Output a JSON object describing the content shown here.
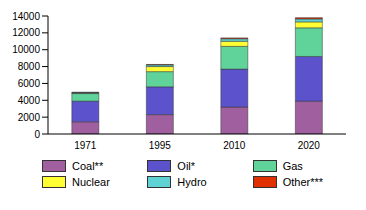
{
  "chart_data": {
    "type": "bar",
    "stacked": true,
    "categories": [
      "1971",
      "1995",
      "2010",
      "2020"
    ],
    "series": [
      {
        "name": "Coal**",
        "color": "#a0609f",
        "values": [
          1450,
          2300,
          3200,
          3900
        ]
      },
      {
        "name": "Oil*",
        "color": "#5b52cc",
        "values": [
          2450,
          3300,
          4500,
          5300
        ]
      },
      {
        "name": "Gas",
        "color": "#5fd39a",
        "values": [
          900,
          1800,
          2700,
          3400
        ]
      },
      {
        "name": "Nuclear",
        "color": "#ffff33",
        "values": [
          30,
          600,
          600,
          700
        ]
      },
      {
        "name": "Hydro",
        "color": "#5fd3d3",
        "values": [
          100,
          200,
          300,
          350
        ]
      },
      {
        "name": "Other***",
        "color": "#e03000",
        "values": [
          20,
          50,
          100,
          150
        ]
      }
    ],
    "ylim": [
      0,
      14000
    ],
    "yticks": [
      0,
      2000,
      4000,
      6000,
      8000,
      10000,
      12000,
      14000
    ],
    "legend": "bottom"
  }
}
